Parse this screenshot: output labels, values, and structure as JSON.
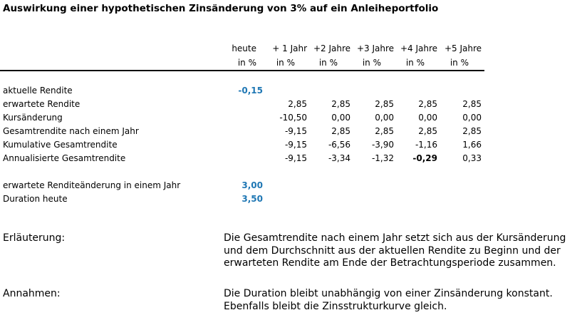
{
  "title": "Auswirkung einer hypothetischen Zinsänderung von 3% auf ein Anleiheportfolio",
  "columns": [
    {
      "line1": "heute",
      "line2": "in %"
    },
    {
      "line1": "+ 1 Jahr",
      "line2": "in %"
    },
    {
      "line1": "+2 Jahre",
      "line2": "in %"
    },
    {
      "line1": "+3 Jahre",
      "line2": "in %"
    },
    {
      "line1": "+4 Jahre",
      "line2": "in %"
    },
    {
      "line1": "+5 Jahre",
      "line2": "in %"
    }
  ],
  "rows": [
    {
      "label": "aktuelle Rendite",
      "heute": "-0,15",
      "values": [
        "",
        "",
        "",
        "",
        ""
      ]
    },
    {
      "label": "erwartete Rendite",
      "heute": "",
      "values": [
        "2,85",
        "2,85",
        "2,85",
        "2,85",
        "2,85"
      ]
    },
    {
      "label": "Kursänderung",
      "heute": "",
      "values": [
        "-10,50",
        "0,00",
        "0,00",
        "0,00",
        "0,00"
      ]
    },
    {
      "label": "Gesamtrendite nach einem Jahr",
      "heute": "",
      "values": [
        "-9,15",
        "2,85",
        "2,85",
        "2,85",
        "2,85"
      ]
    },
    {
      "label": "Kumulative Gesamtrendite",
      "heute": "",
      "values": [
        "-9,15",
        "-6,56",
        "-3,90",
        "-1,16",
        "1,66"
      ]
    },
    {
      "label": "Annualisierte Gesamtrendite",
      "heute": "",
      "values": [
        "-9,15",
        "-3,34",
        "-1,32",
        "-0,29",
        "0,33"
      ]
    }
  ],
  "summary": [
    {
      "label": "erwartete Renditeänderung in einem Jahr",
      "value": "3,00"
    },
    {
      "label": "Duration heute",
      "value": "3,50"
    }
  ],
  "notes": [
    {
      "label": "Erläuterung:",
      "text": "Die Gesamtrendite nach einem Jahr setzt sich aus der Kursänderung und dem Durchschnitt aus der aktuellen Rendite zu Beginn und der erwarteten Rendite am Ende der Betrachtungsperiode zusammen."
    },
    {
      "label": "Annahmen:",
      "text": "Die Duration bleibt unabhängig von einer Zinsänderung konstant. Ebenfalls bleibt die Zinsstrukturkurve gleich."
    }
  ]
}
